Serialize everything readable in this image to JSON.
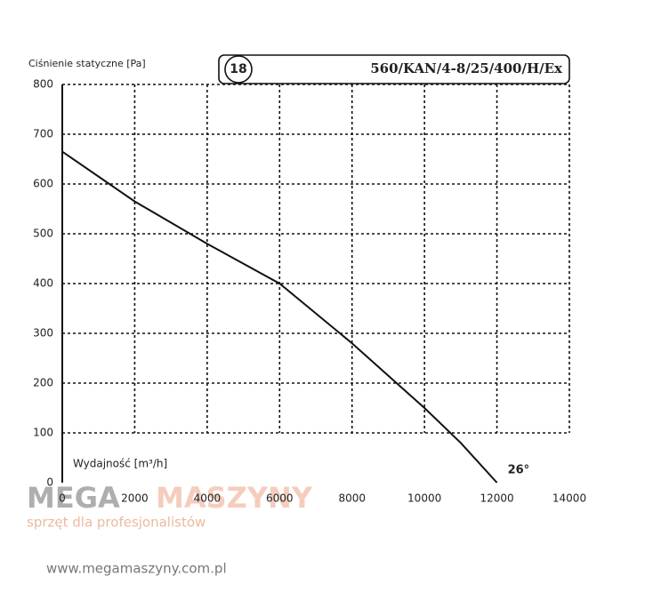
{
  "chart_data": {
    "type": "line",
    "title": "560/KAN/4-8/25/400/H/Ex",
    "badge": "18",
    "y_label": "Ciśnienie statyczne [Pa]",
    "x_label": "Wydajność [m³/h]",
    "annotation": "26°",
    "x": [
      0,
      2000,
      4000,
      6000,
      8000,
      10000,
      11000,
      12000
    ],
    "values": [
      665,
      565,
      480,
      400,
      280,
      150,
      80,
      0
    ],
    "color": "#111111",
    "xlim": [
      0,
      14000
    ],
    "xticks": [
      0,
      2000,
      4000,
      6000,
      8000,
      10000,
      12000,
      14000
    ],
    "ylim": [
      0,
      800
    ],
    "yticks": [
      0,
      100,
      200,
      300,
      400,
      500,
      600,
      700,
      800
    ],
    "grid": true
  },
  "watermark": {
    "brand_left": "MEGA",
    "brand_right": "MASZYNY",
    "tagline": "sprzęt dla profesjonalistów",
    "url": "www.megamaszyny.com.pl"
  }
}
